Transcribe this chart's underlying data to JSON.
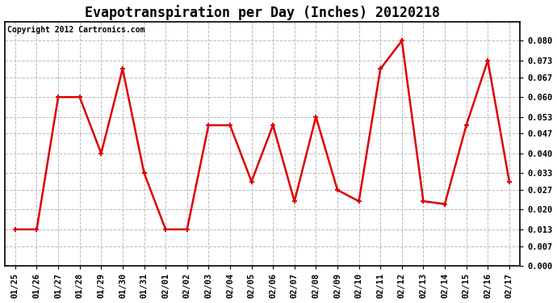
{
  "title": "Evapotranspiration per Day (Inches) 20120218",
  "copyright_text": "Copyright 2012 Cartronics.com",
  "x_labels": [
    "01/25",
    "01/26",
    "01/27",
    "01/28",
    "01/29",
    "01/30",
    "01/31",
    "02/01",
    "02/02",
    "02/03",
    "02/04",
    "02/05",
    "02/06",
    "02/07",
    "02/08",
    "02/09",
    "02/10",
    "02/11",
    "02/12",
    "02/13",
    "02/14",
    "02/15",
    "02/16",
    "02/17"
  ],
  "y_values": [
    0.013,
    0.013,
    0.06,
    0.06,
    0.04,
    0.07,
    0.033,
    0.013,
    0.013,
    0.05,
    0.05,
    0.03,
    0.05,
    0.023,
    0.053,
    0.027,
    0.023,
    0.07,
    0.08,
    0.023,
    0.022,
    0.05,
    0.073,
    0.03
  ],
  "line_color": "#dd0000",
  "marker": "+",
  "marker_size": 5,
  "marker_linewidth": 1.5,
  "line_width": 1.8,
  "ylim": [
    0.0,
    0.0866
  ],
  "y_ticks": [
    0.0,
    0.007,
    0.013,
    0.02,
    0.027,
    0.033,
    0.04,
    0.047,
    0.053,
    0.06,
    0.067,
    0.073,
    0.08
  ],
  "grid_color": "#bbbbbb",
  "grid_style": "--",
  "background_color": "#ffffff",
  "plot_bg_color": "#ffffff",
  "title_fontsize": 12,
  "tick_fontsize": 7.5,
  "copyright_fontsize": 7
}
